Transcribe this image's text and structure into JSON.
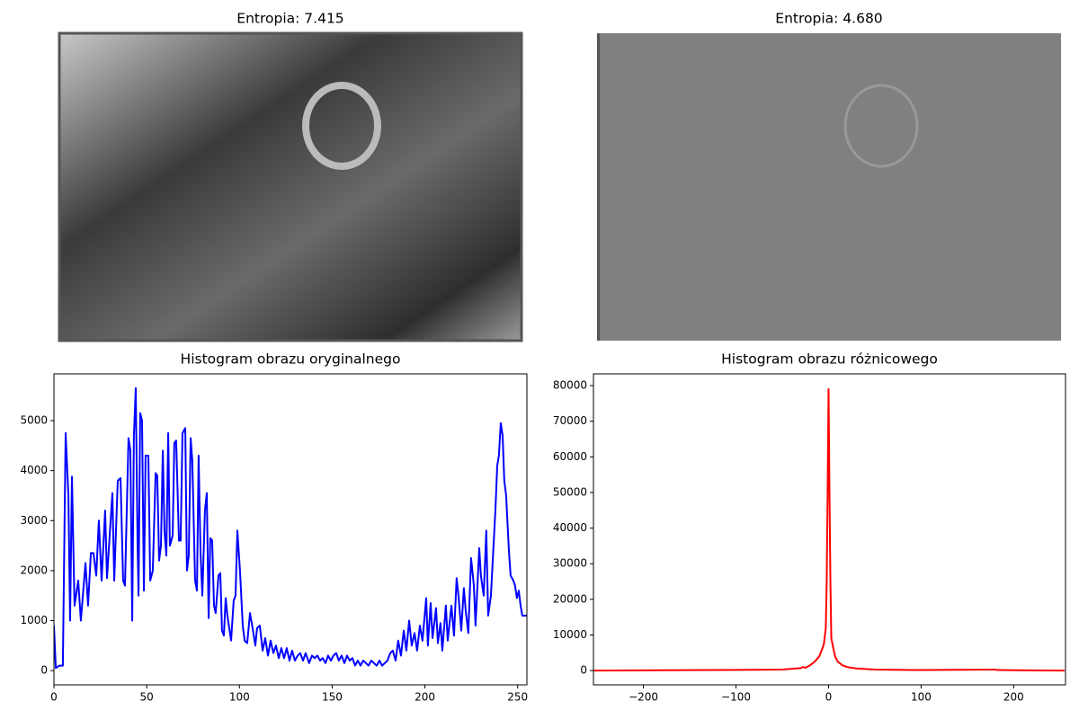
{
  "chart_data": [
    {
      "type": "image",
      "title": "Entropia: 7.415"
    },
    {
      "type": "image",
      "title": "Entropia: 4.680"
    },
    {
      "type": "line",
      "title": "Histogram obrazu oryginalnego",
      "x": [
        0,
        1.0,
        2.9,
        4.8,
        6.3,
        7.8,
        8.7,
        9.7,
        11.1,
        13.1,
        14.5,
        17.0,
        18.4,
        19.9,
        21.3,
        22.8,
        24.2,
        25.7,
        27.6,
        28.6,
        31.5,
        32.5,
        34.4,
        35.9,
        37.3,
        38.3,
        40.2,
        41.2,
        42.2,
        43.1,
        44.1,
        45.1,
        45.6,
        46.5,
        47.5,
        48.5,
        49.4,
        50.9,
        51.9,
        53.3,
        54.8,
        55.7,
        56.7,
        57.7,
        58.7,
        59.6,
        60.6,
        61.6,
        62.5,
        64.0,
        64.9,
        65.9,
        67.4,
        68.3,
        69.3,
        70.8,
        71.7,
        72.7,
        73.7,
        74.6,
        76.1,
        77.1,
        78.0,
        79.0,
        80.0,
        81.4,
        82.4,
        83.4,
        84.3,
        85.3,
        86.3,
        87.2,
        88.7,
        89.7,
        90.6,
        91.6,
        92.6,
        93.5,
        95.5,
        96.9,
        97.9,
        98.9,
        100.3,
        101.8,
        102.8,
        104.2,
        105.7,
        107.1,
        108.6,
        109.5,
        111.0,
        112.5,
        113.9,
        115.4,
        116.8,
        118.3,
        119.7,
        121.2,
        122.6,
        124.1,
        125.5,
        127.0,
        128.4,
        129.9,
        131.4,
        132.8,
        134.3,
        135.7,
        137.6,
        139.1,
        140.6,
        142.0,
        143.5,
        144.9,
        146.4,
        147.8,
        149.3,
        150.7,
        152.2,
        153.6,
        155.1,
        156.6,
        158.0,
        159.5,
        160.9,
        162.4,
        163.8,
        165.3,
        166.7,
        168.2,
        169.6,
        171.1,
        172.5,
        174.0,
        175.5,
        176.9,
        178.4,
        179.8,
        181.3,
        182.7,
        184.2,
        185.6,
        187.1,
        188.6,
        190.0,
        191.5,
        192.9,
        194.4,
        195.8,
        197.3,
        198.7,
        200.7,
        201.6,
        203.1,
        204.1,
        206.0,
        207.0,
        208.4,
        209.4,
        211.3,
        212.3,
        214.3,
        215.7,
        217.1,
        218.1,
        219.6,
        221.0,
        222.0,
        223.4,
        224.9,
        226.4,
        227.3,
        229.3,
        230.2,
        231.7,
        233.1,
        234.1,
        235.6,
        237.0,
        238.0,
        239.0,
        239.9,
        240.9,
        241.9,
        242.8,
        243.8,
        245.3,
        246.2,
        247.7,
        248.6,
        249.6,
        250.6,
        251.6,
        252.5,
        255.0
      ],
      "series": [
        {
          "color": "#0000ff",
          "values": [
            900,
            50,
            100,
            100,
            4750,
            3500,
            1000,
            3880,
            1300,
            1800,
            1000,
            2150,
            1300,
            2350,
            2350,
            1900,
            3000,
            1800,
            3200,
            1850,
            3550,
            1800,
            3800,
            3850,
            1800,
            1700,
            4650,
            4400,
            1000,
            4700,
            5650,
            2500,
            1500,
            5150,
            5000,
            1600,
            4300,
            4300,
            1800,
            2000,
            3950,
            3900,
            2200,
            2500,
            4400,
            2800,
            2300,
            4750,
            2500,
            2700,
            4550,
            4600,
            2600,
            2600,
            4750,
            4850,
            2000,
            2300,
            4650,
            4200,
            1800,
            1600,
            4300,
            2400,
            1500,
            3200,
            3550,
            1050,
            2650,
            2600,
            1300,
            1150,
            1900,
            1950,
            800,
            700,
            1450,
            1100,
            600,
            1400,
            1500,
            2800,
            2000,
            900,
            600,
            550,
            1150,
            850,
            500,
            850,
            900,
            400,
            650,
            300,
            600,
            350,
            500,
            250,
            450,
            250,
            450,
            200,
            400,
            200,
            300,
            350,
            200,
            350,
            150,
            300,
            250,
            300,
            200,
            250,
            150,
            300,
            200,
            300,
            350,
            200,
            300,
            150,
            300,
            200,
            250,
            100,
            200,
            100,
            200,
            150,
            100,
            200,
            150,
            100,
            200,
            100,
            150,
            200,
            350,
            400,
            200,
            600,
            300,
            800,
            400,
            1000,
            500,
            750,
            400,
            900,
            600,
            1450,
            500,
            1350,
            650,
            1250,
            550,
            950,
            400,
            1300,
            600,
            1300,
            700,
            1850,
            1500,
            800,
            1650,
            1200,
            750,
            2250,
            1700,
            900,
            2450,
            1900,
            1500,
            2800,
            1100,
            1500,
            2500,
            3200,
            4100,
            4300,
            4950,
            4700,
            3800,
            3500,
            2400,
            1900,
            1800,
            1700,
            1450,
            1600,
            1300,
            1100,
            1100
          ]
        }
      ],
      "xlim": [
        0,
        255
      ],
      "ylim": [
        -285,
        5935
      ],
      "xticks": [
        0,
        50,
        100,
        150,
        200,
        250
      ],
      "yticks": [
        0,
        1000,
        2000,
        3000,
        4000,
        5000
      ]
    },
    {
      "type": "line",
      "title": "Histogram obrazu różnicowego",
      "x": [
        -255,
        -100,
        -50,
        -30,
        -28,
        -25,
        -20,
        -15,
        -10,
        -7,
        -5,
        -3,
        -2,
        -1,
        0,
        1,
        2,
        3,
        5,
        7,
        10,
        15,
        20,
        30,
        50,
        100,
        180,
        182,
        255
      ],
      "series": [
        {
          "color": "#ff0000",
          "values": [
            0,
            200,
            300,
            700,
            1000,
            800,
            1500,
            2500,
            4000,
            6000,
            7500,
            12000,
            25000,
            50000,
            79000,
            50000,
            25000,
            9000,
            6500,
            4000,
            2500,
            1500,
            1000,
            600,
            300,
            150,
            300,
            150,
            0
          ]
        }
      ],
      "xlim": [
        -254,
        256
      ],
      "ylim": [
        -4000,
        83300
      ],
      "xticks": [
        {
          "value": -200,
          "label": "−200"
        },
        {
          "value": -100,
          "label": "−100"
        },
        0,
        100,
        200
      ],
      "yticks": [
        0,
        10000,
        20000,
        30000,
        40000,
        50000,
        60000,
        70000,
        80000
      ]
    }
  ]
}
